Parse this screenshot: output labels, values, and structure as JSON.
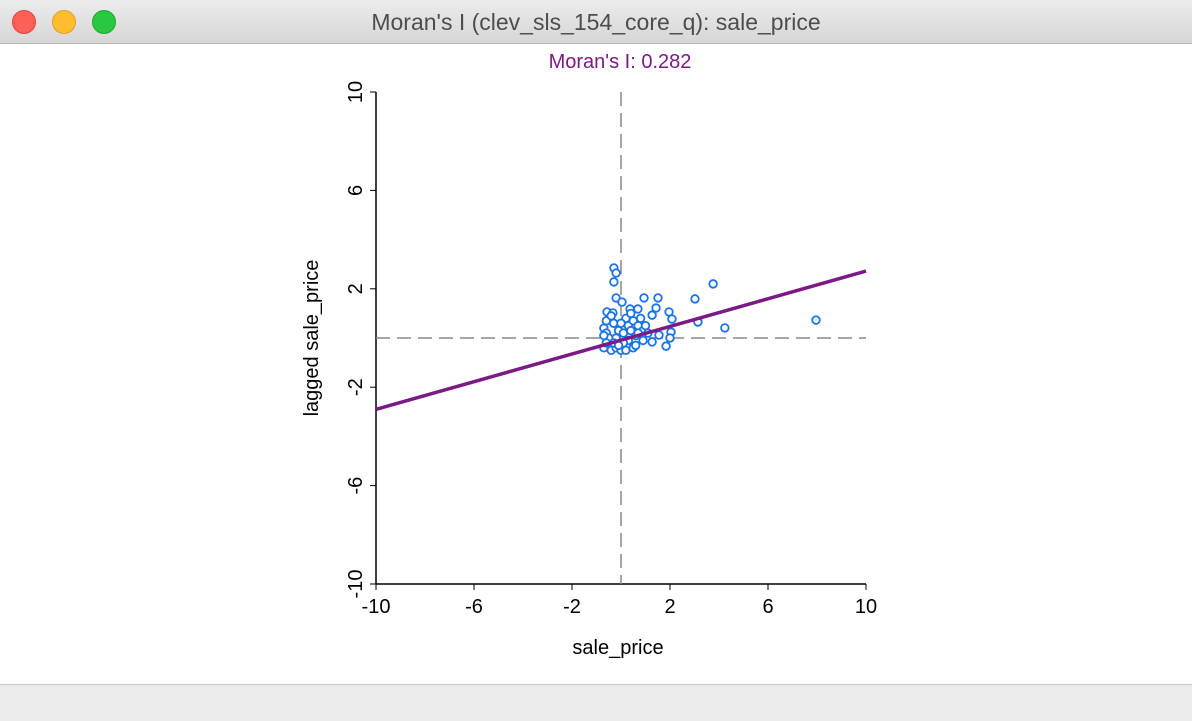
{
  "window": {
    "title": "Moran's I (clev_sls_154_core_q): sale_price"
  },
  "chart_data": {
    "type": "scatter",
    "title": "Moran's I: 0.282",
    "xlabel": "sale_price",
    "ylabel": "lagged sale_price",
    "xlim": [
      -10,
      10
    ],
    "ylim": [
      -10,
      10
    ],
    "xticks": [
      -10,
      -6,
      -2,
      2,
      6,
      10
    ],
    "yticks": [
      -10,
      -6,
      -2,
      2,
      6,
      10
    ],
    "moran_i": 0.282,
    "regression_line": {
      "x": [
        -10,
        10
      ],
      "y": [
        -2.9,
        2.72
      ]
    },
    "colors": {
      "points": "#1a73e8",
      "line": "#7b1a85",
      "title": "#7b1a85"
    },
    "points": [
      [
        -0.29,
        2.85
      ],
      [
        -0.2,
        2.64
      ],
      [
        -0.29,
        2.28
      ],
      [
        -0.2,
        1.63
      ],
      [
        0.04,
        1.46
      ],
      [
        0.94,
        1.63
      ],
      [
        1.51,
        1.63
      ],
      [
        3.02,
        1.59
      ],
      [
        3.76,
        2.2
      ],
      [
        1.43,
        1.22
      ],
      [
        1.27,
        0.93
      ],
      [
        1.96,
        1.06
      ],
      [
        2.08,
        0.77
      ],
      [
        3.14,
        0.65
      ],
      [
        4.24,
        0.41
      ],
      [
        7.96,
        0.73
      ],
      [
        2.04,
        0.24
      ],
      [
        2.0,
        0.0
      ],
      [
        1.84,
        -0.33
      ],
      [
        1.27,
        -0.16
      ],
      [
        1.55,
        0.12
      ],
      [
        0.69,
        1.18
      ],
      [
        0.37,
        1.18
      ],
      [
        -0.57,
        1.06
      ],
      [
        -0.33,
        1.02
      ],
      [
        -0.7,
        0.4
      ],
      [
        -0.6,
        0.2
      ],
      [
        -0.5,
        -0.2
      ],
      [
        -0.7,
        -0.4
      ],
      [
        -0.4,
        -0.5
      ],
      [
        -0.2,
        -0.4
      ],
      [
        0,
        -0.5
      ],
      [
        0.2,
        -0.5
      ],
      [
        0.5,
        -0.4
      ],
      [
        -0.6,
        0.7
      ],
      [
        -0.3,
        0.6
      ],
      [
        -0.1,
        0.3
      ],
      [
        0.1,
        0.2
      ],
      [
        0.3,
        0.5
      ],
      [
        0.5,
        0.7
      ],
      [
        0.7,
        0.5
      ],
      [
        0.9,
        0.3
      ],
      [
        0.3,
        -0.1
      ],
      [
        0.6,
        0.1
      ],
      [
        -0.5,
        0.0
      ],
      [
        -0.2,
        0.0
      ],
      [
        0.1,
        -0.2
      ],
      [
        0.4,
        0.3
      ],
      [
        0.8,
        0.8
      ],
      [
        1.0,
        0.5
      ],
      [
        -0.4,
        0.9
      ],
      [
        0.2,
        0.8
      ],
      [
        0.6,
        -0.3
      ],
      [
        -0.7,
        0.1
      ],
      [
        -0.3,
        -0.2
      ],
      [
        0.0,
        0.6
      ],
      [
        0.9,
        -0.1
      ],
      [
        1.1,
        0.2
      ],
      [
        -0.6,
        -0.2
      ],
      [
        0.4,
        1.0
      ],
      [
        0.7,
        0.2
      ],
      [
        -0.1,
        -0.3
      ]
    ]
  }
}
